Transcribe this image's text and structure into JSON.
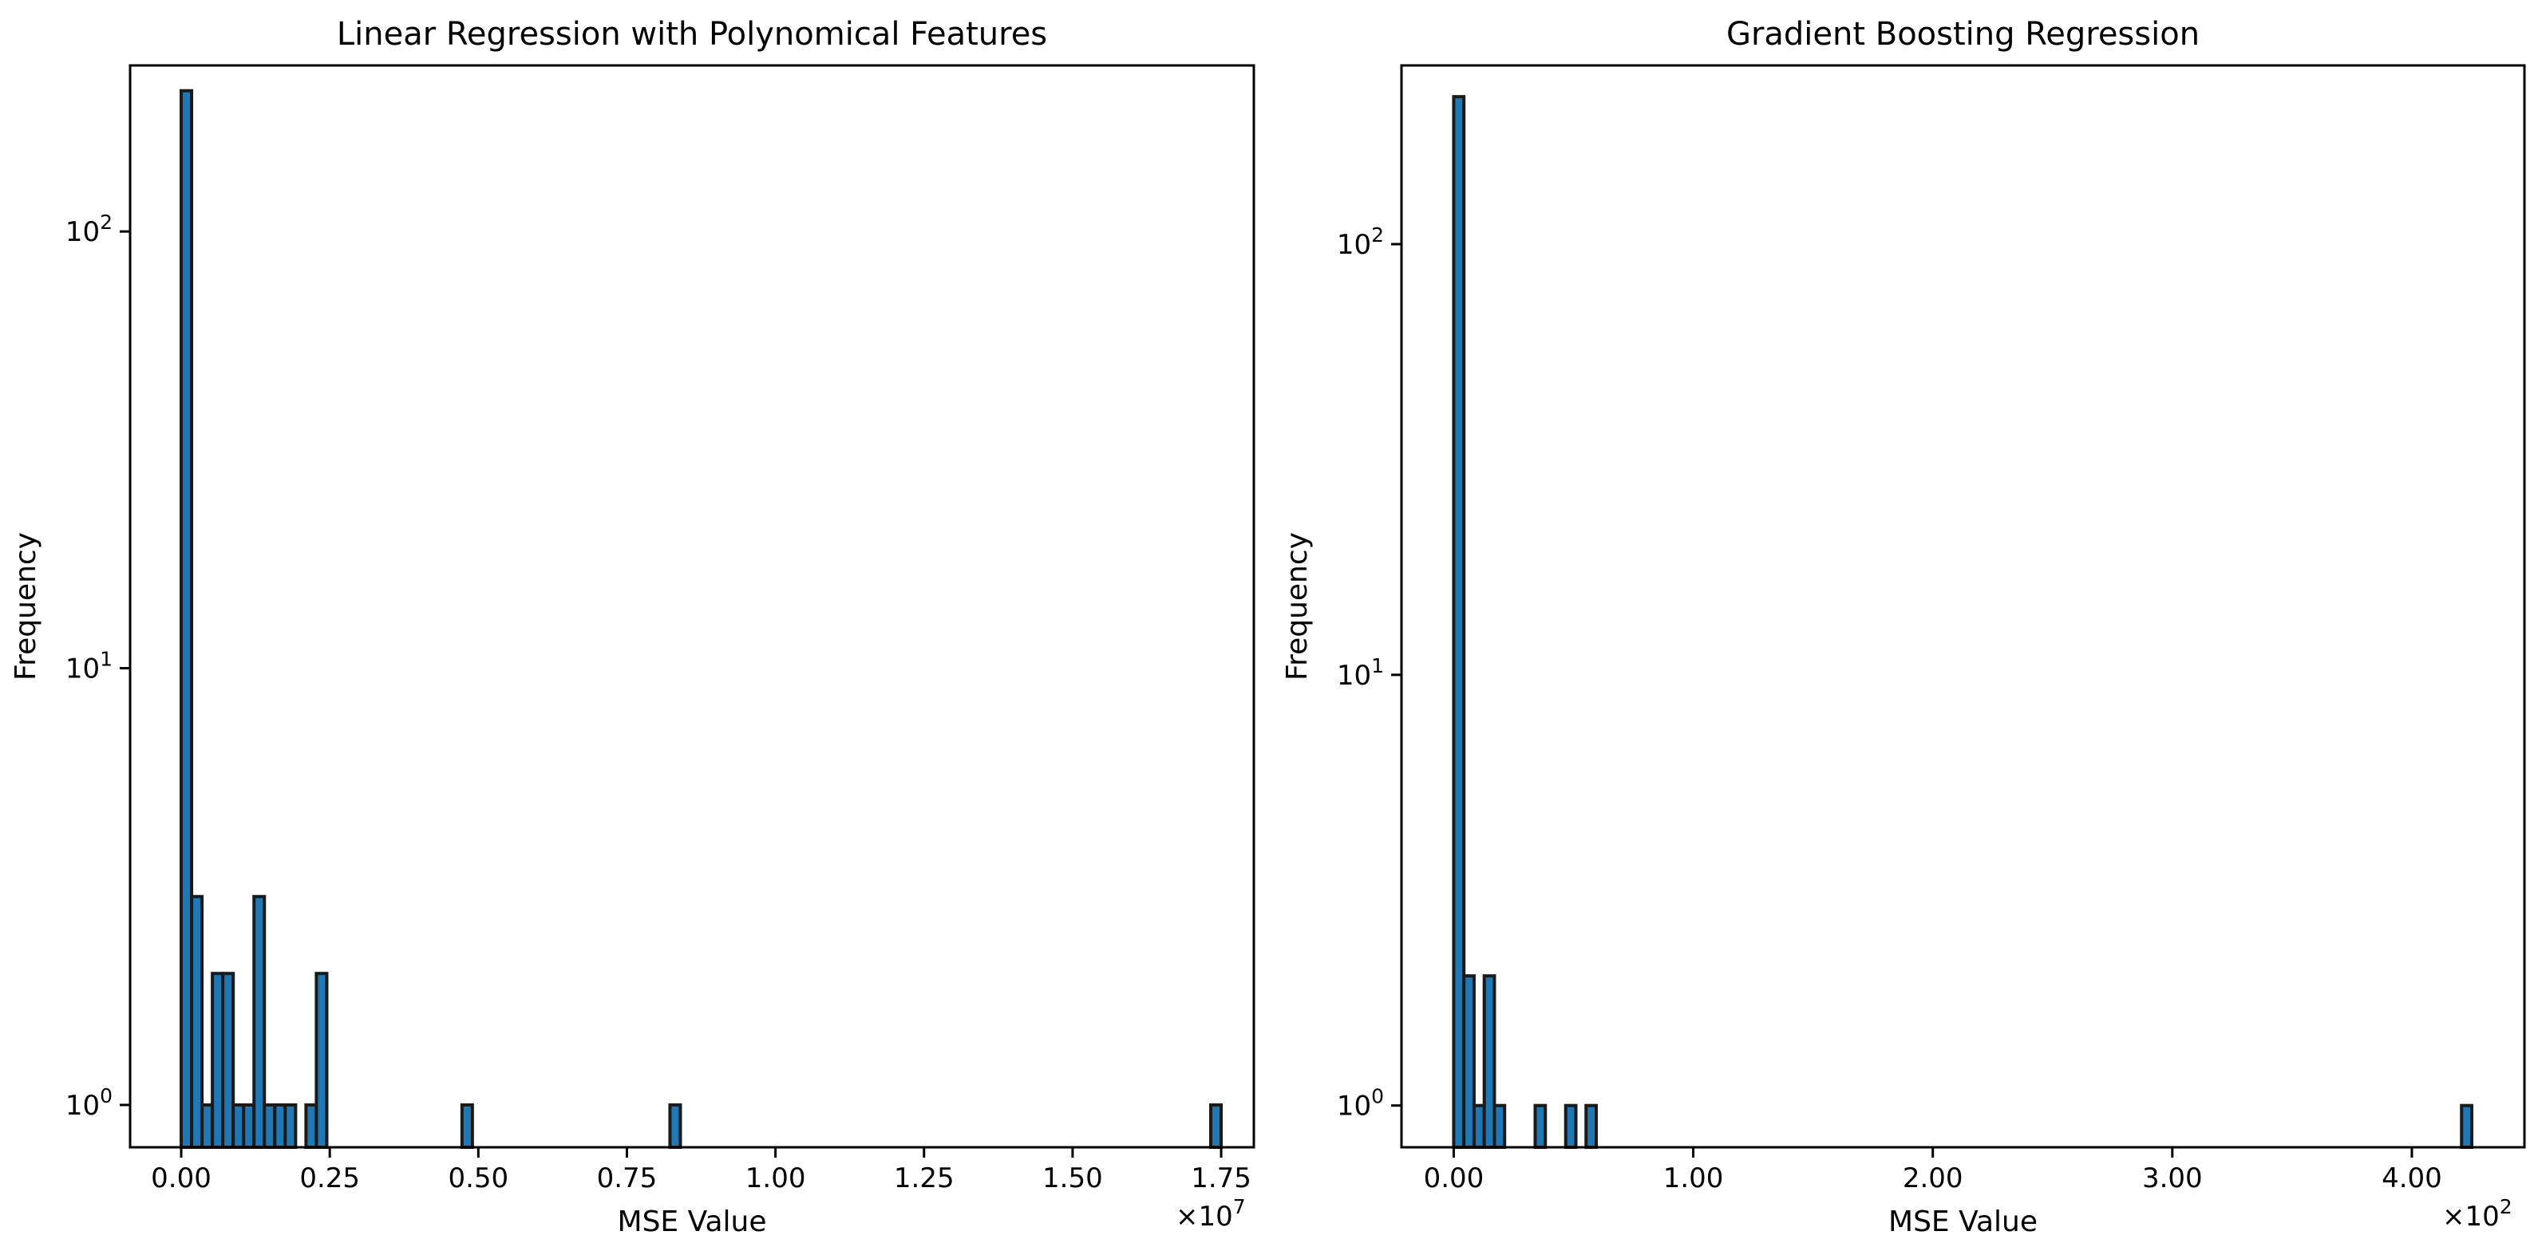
{
  "figure": {
    "panels": [
      {
        "title": "Linear Regression with Polynomical Features",
        "xlabel": "MSE Value",
        "ylabel": "Frequency",
        "offset_text": "×10",
        "offset_exp": "7"
      },
      {
        "title": "Gradient Boosting Regression",
        "xlabel": "MSE Value",
        "ylabel": "Frequency",
        "offset_text": "×10",
        "offset_exp": "2"
      }
    ]
  },
  "chart_data": [
    {
      "type": "bar",
      "title": "Linear Regression with Polynomical Features",
      "xlabel": "MSE Value",
      "ylabel": "Frequency",
      "y_scale": "log",
      "x_offset_multiplier": "×10^7",
      "xlim": [
        -0.086,
        1.805
      ],
      "ylim": [
        0.8,
        240
      ],
      "bin_width": 0.0175,
      "x_ticks": [
        0,
        0.25,
        0.5,
        0.75,
        1.0,
        1.25,
        1.5,
        1.75
      ],
      "x_tick_labels": [
        "0.00",
        "0.25",
        "0.50",
        "0.75",
        "1.00",
        "1.25",
        "1.50",
        "1.75"
      ],
      "y_ticks": [
        1,
        10,
        100
      ],
      "y_tick_base": "10",
      "y_tick_exponents": [
        "0",
        "1",
        "2"
      ],
      "bins": [
        {
          "x": 0.0,
          "count": 210
        },
        {
          "x": 0.0175,
          "count": 3
        },
        {
          "x": 0.035,
          "count": 1
        },
        {
          "x": 0.0525,
          "count": 2
        },
        {
          "x": 0.07,
          "count": 2
        },
        {
          "x": 0.0875,
          "count": 1
        },
        {
          "x": 0.105,
          "count": 1
        },
        {
          "x": 0.1225,
          "count": 3
        },
        {
          "x": 0.14,
          "count": 1
        },
        {
          "x": 0.1575,
          "count": 1
        },
        {
          "x": 0.175,
          "count": 1
        },
        {
          "x": 0.21,
          "count": 1
        },
        {
          "x": 0.2275,
          "count": 2
        },
        {
          "x": 0.4725,
          "count": 1
        },
        {
          "x": 0.8225,
          "count": 1
        },
        {
          "x": 1.7325,
          "count": 1
        }
      ]
    },
    {
      "type": "bar",
      "title": "Gradient Boosting Regression",
      "xlabel": "MSE Value",
      "ylabel": "Frequency",
      "y_scale": "log",
      "x_offset_multiplier": "×10^2",
      "xlim": [
        -0.218,
        4.47
      ],
      "ylim": [
        0.8,
        260
      ],
      "bin_width": 0.0425,
      "x_ticks": [
        0,
        1,
        2,
        3,
        4
      ],
      "x_tick_labels": [
        "0.00",
        "1.00",
        "2.00",
        "3.00",
        "4.00"
      ],
      "y_ticks": [
        1,
        10,
        100
      ],
      "y_tick_base": "10",
      "y_tick_exponents": [
        "0",
        "1",
        "2"
      ],
      "bins": [
        {
          "x": 0.0,
          "count": 220
        },
        {
          "x": 0.0425,
          "count": 2
        },
        {
          "x": 0.085,
          "count": 1
        },
        {
          "x": 0.1275,
          "count": 2
        },
        {
          "x": 0.17,
          "count": 1
        },
        {
          "x": 0.34,
          "count": 1
        },
        {
          "x": 0.4675,
          "count": 1
        },
        {
          "x": 0.5525,
          "count": 1
        },
        {
          "x": 4.2075,
          "count": 1
        }
      ]
    }
  ]
}
